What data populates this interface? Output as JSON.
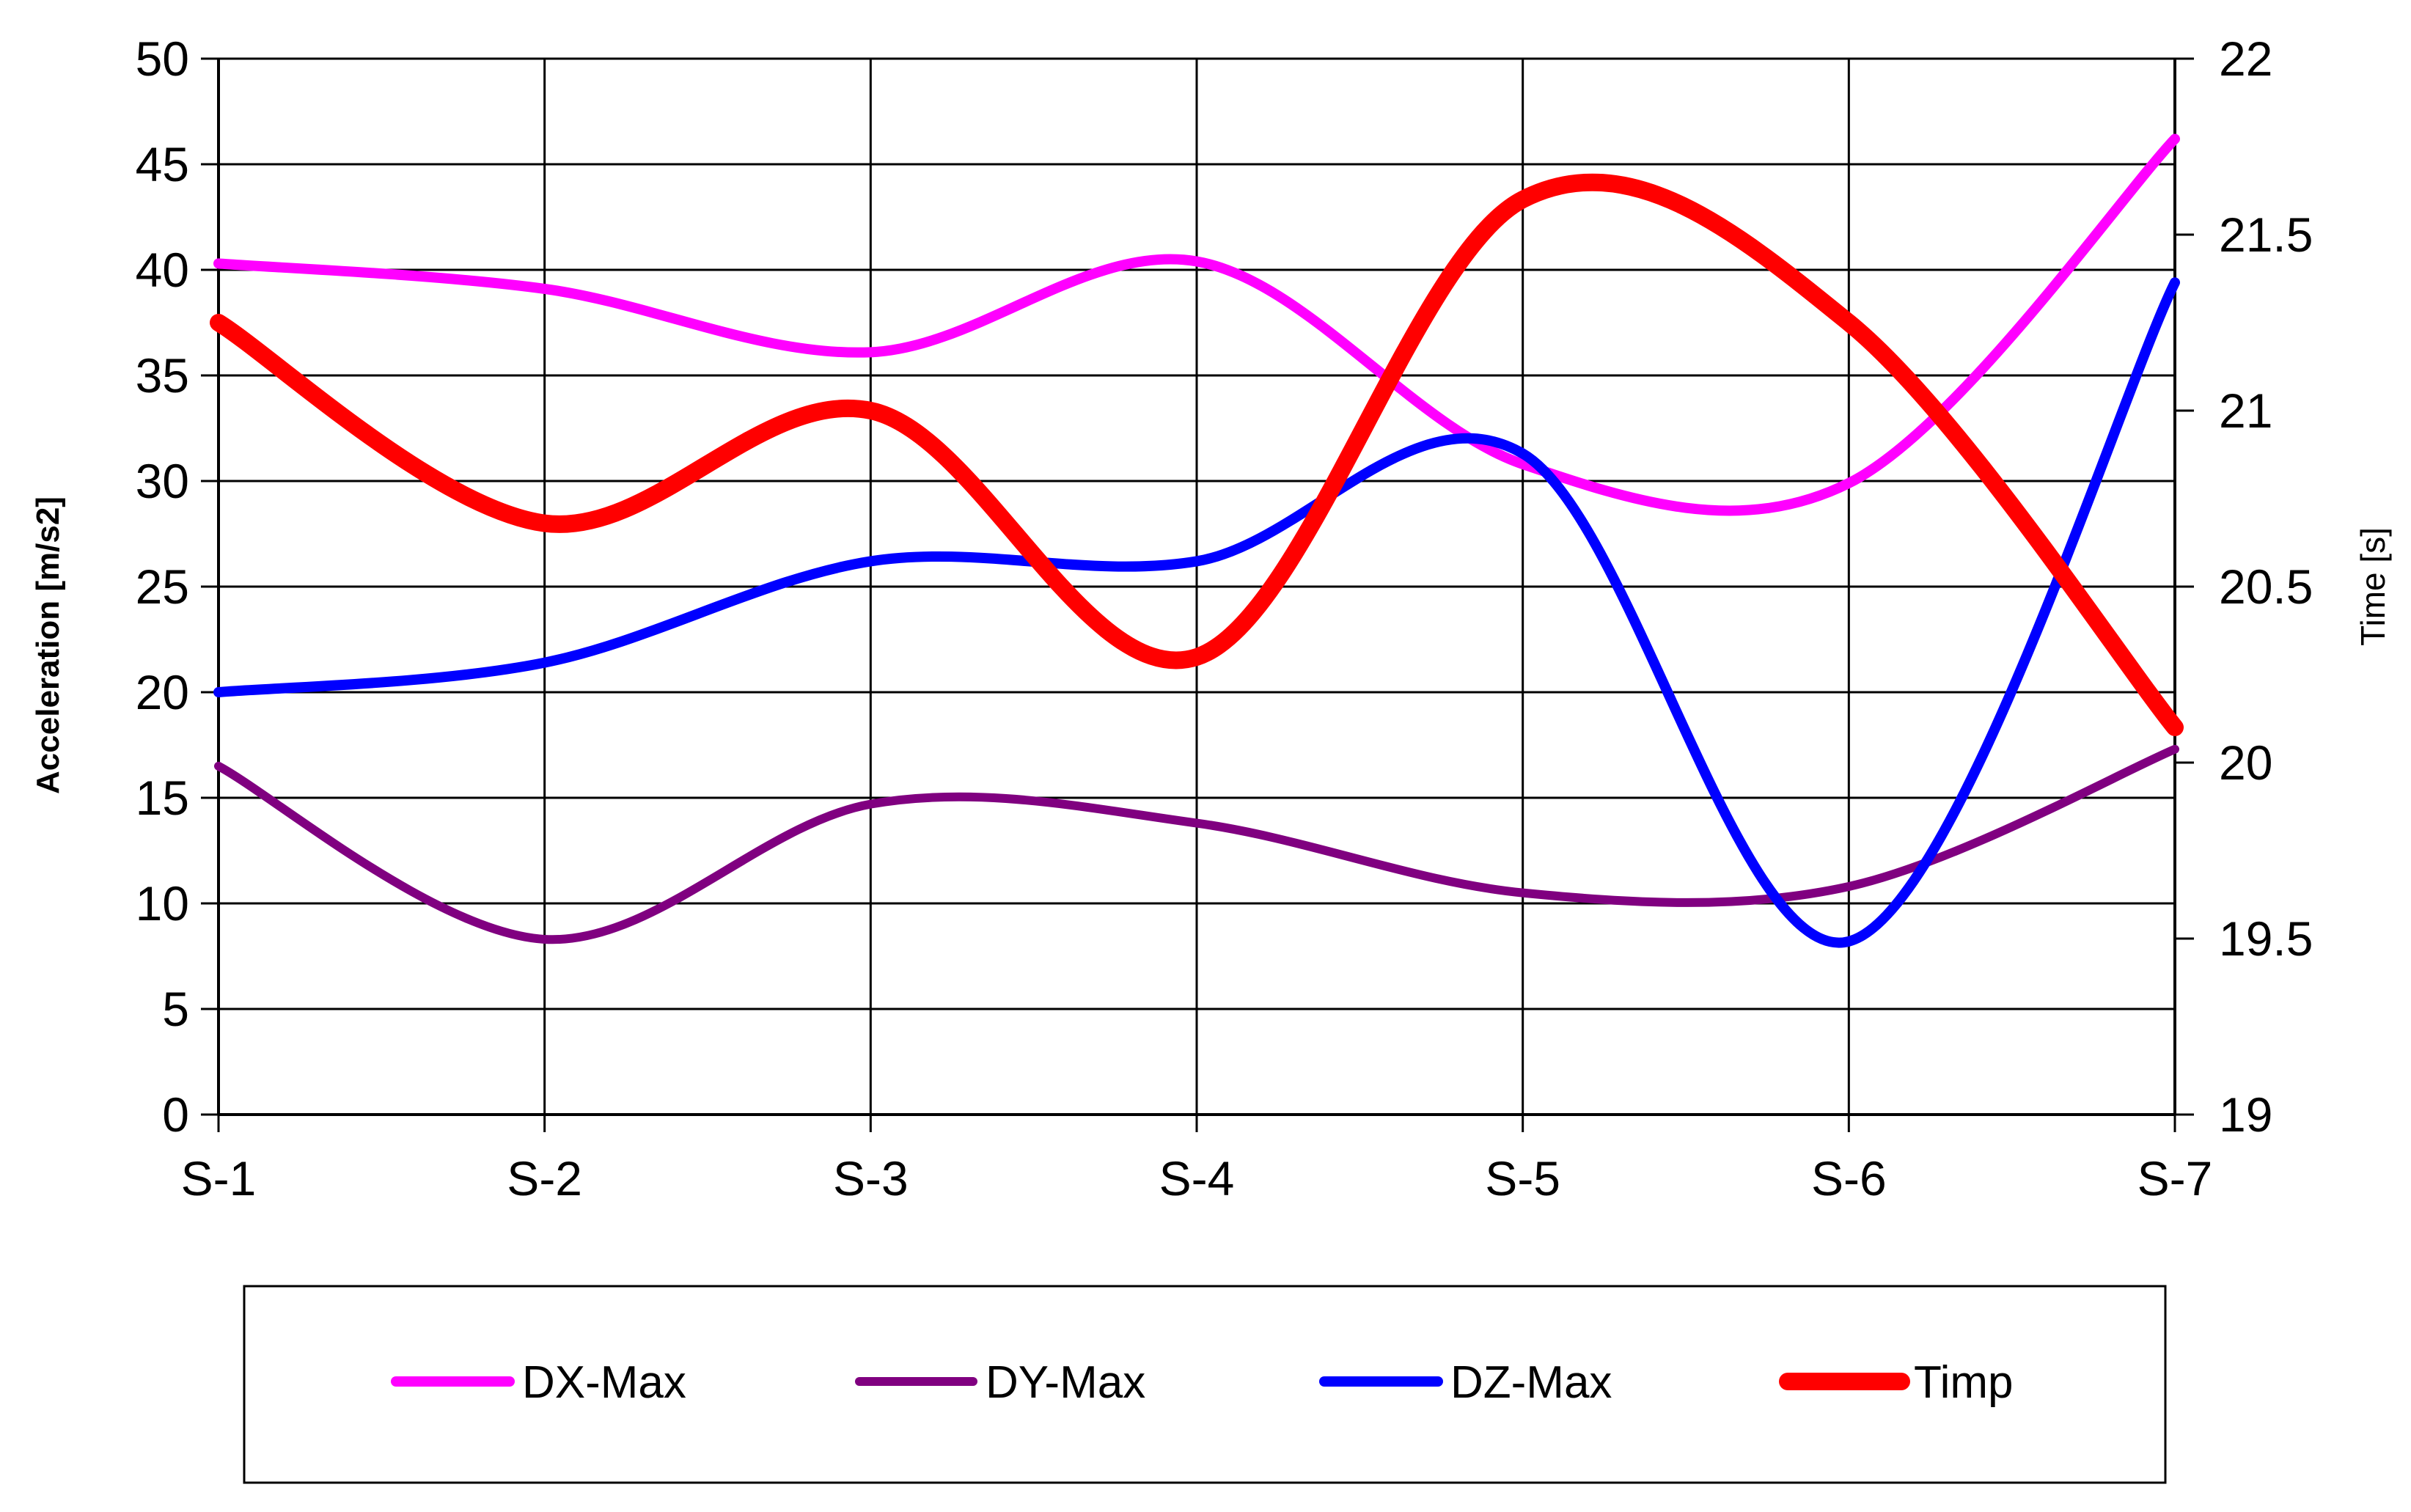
{
  "chart_data": {
    "type": "line",
    "categories": [
      "S-1",
      "S-2",
      "S-3",
      "S-4",
      "S-5",
      "S-6",
      "S-7"
    ],
    "ylabel": "Acceleration [m/s2]",
    "ylabel_right": "Time [s]",
    "ylim": [
      0,
      50
    ],
    "yticks": [
      0,
      5,
      10,
      15,
      20,
      25,
      30,
      35,
      40,
      45,
      50
    ],
    "y2lim": [
      19,
      22
    ],
    "y2ticks": [
      19,
      19.5,
      20,
      20.5,
      21,
      21.5,
      22
    ],
    "grid": true,
    "legend_position": "bottom",
    "series": [
      {
        "name": "DX-Max",
        "axis": "left",
        "color": "#ff00ff",
        "values": [
          40.3,
          39.1,
          36.1,
          40.4,
          30.8,
          29.9,
          46.2
        ]
      },
      {
        "name": "DY-Max",
        "axis": "left",
        "color": "#800080",
        "values": [
          16.5,
          8.3,
          14.7,
          13.8,
          10.5,
          10.8,
          17.3
        ]
      },
      {
        "name": "DZ-Max",
        "axis": "left",
        "color": "#0000ff",
        "values": [
          20.0,
          21.4,
          26.2,
          26.2,
          31.3,
          8.2,
          39.4
        ]
      },
      {
        "name": "Timp",
        "axis": "right",
        "color": "#ff0000",
        "values": [
          21.25,
          20.68,
          21.0,
          20.3,
          21.6,
          21.25,
          20.1
        ]
      }
    ]
  }
}
